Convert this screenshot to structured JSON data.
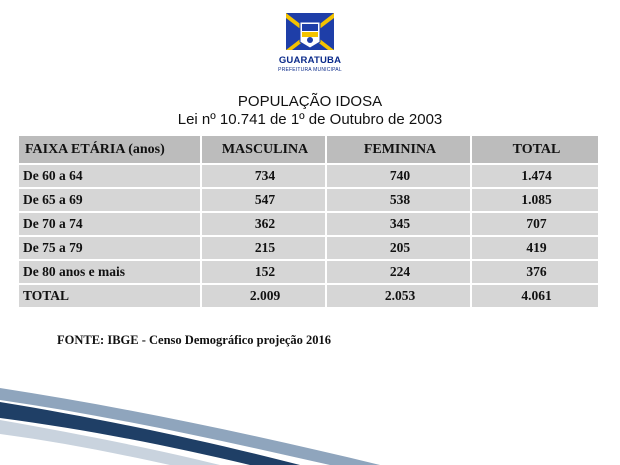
{
  "logo": {
    "name": "GUARATUBA",
    "subtitle": "PREFEITURA MUNICIPAL",
    "colors": {
      "blue": "#1e3ea8",
      "yellow": "#f3c300",
      "white": "#ffffff"
    }
  },
  "title_line1": "POPULAÇÃO IDOSA",
  "title_line2": "Lei nº 10.741 de 1º de Outubro de 2003",
  "table": {
    "headers": [
      "FAIXA ETÁRIA (anos)",
      "MASCULINA",
      "FEMININA",
      "TOTAL"
    ],
    "rows": [
      [
        "De 60 a 64",
        "734",
        "740",
        "1.474"
      ],
      [
        "De 65 a 69",
        "547",
        "538",
        "1.085"
      ],
      [
        "De 70 a 74",
        "362",
        "345",
        "707"
      ],
      [
        "De 75 a 79",
        "215",
        "205",
        "419"
      ],
      [
        "De 80 anos e mais",
        "152",
        "224",
        "376"
      ],
      [
        "TOTAL",
        "2.009",
        "2.053",
        "4.061"
      ]
    ]
  },
  "source": "FONTE: IBGE - Censo Demográfico projeção  2016",
  "colors": {
    "header_bg": "#bcbcbc",
    "row_bg": "#d6d6d6",
    "swoosh_dark": "#1f3f66",
    "swoosh_light": "#8fa5bd"
  }
}
